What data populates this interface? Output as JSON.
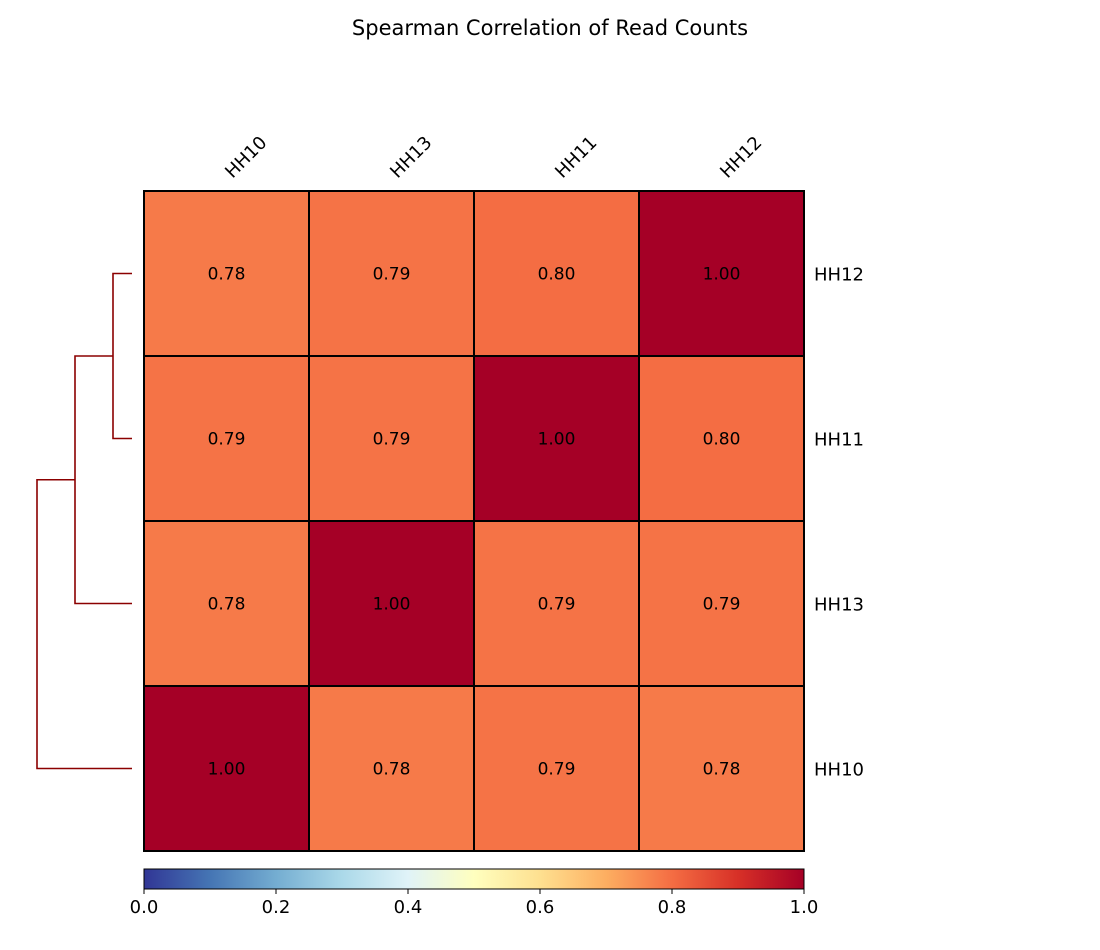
{
  "chart_data": {
    "type": "heatmap",
    "title": "Spearman Correlation of Read Counts",
    "col_labels": [
      "HH10",
      "HH13",
      "HH11",
      "HH12"
    ],
    "row_labels": [
      "HH12",
      "HH11",
      "HH13",
      "HH10"
    ],
    "values": [
      [
        0.78,
        0.79,
        0.8,
        1.0
      ],
      [
        0.79,
        0.79,
        1.0,
        0.8
      ],
      [
        0.78,
        1.0,
        0.79,
        0.79
      ],
      [
        1.0,
        0.78,
        0.79,
        0.78
      ]
    ],
    "value_labels": [
      [
        "0.78",
        "0.79",
        "0.80",
        "1.00"
      ],
      [
        "0.79",
        "0.79",
        "1.00",
        "0.80"
      ],
      [
        "0.78",
        "1.00",
        "0.79",
        "0.79"
      ],
      [
        "1.00",
        "0.78",
        "0.79",
        "0.78"
      ]
    ],
    "colorbar": {
      "orientation": "horizontal",
      "range": [
        0.0,
        1.0
      ],
      "ticks": [
        "0.0",
        "0.2",
        "0.4",
        "0.6",
        "0.8",
        "1.0"
      ],
      "colormap": "RdYlBu_r",
      "colormap_stops": [
        "#313695",
        "#4575b4",
        "#74add1",
        "#abd9e9",
        "#e0f3f8",
        "#ffffbf",
        "#fee090",
        "#fdae61",
        "#f46d43",
        "#d73027",
        "#a50026"
      ]
    },
    "dendrogram": {
      "side": "left",
      "leaves": [
        "HH12",
        "HH11",
        "HH13",
        "HH10"
      ],
      "merges": [
        {
          "left": "HH12",
          "right": "HH11",
          "height": 0.2
        },
        {
          "left": "HH12+HH11",
          "right": "HH13",
          "height": 0.21
        },
        {
          "left": "HH12+HH11+HH13",
          "right": "HH10",
          "height": 0.22
        }
      ],
      "color": "#8b0000"
    }
  }
}
